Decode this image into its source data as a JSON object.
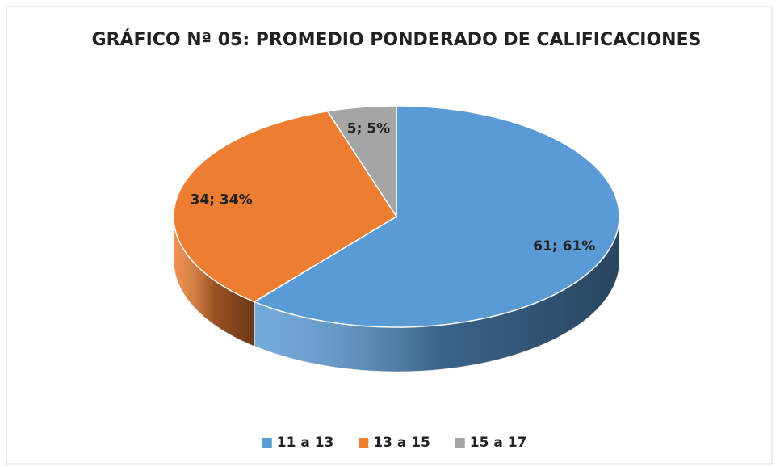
{
  "chart_data": {
    "type": "pie3d",
    "title": "GRÁFICO Nª 05: PROMEDIO PONDERADO DE CALIFICACIONES",
    "categories": [
      "11 a 13",
      "13 a 15",
      "15 a 17"
    ],
    "values": [
      61,
      34,
      5
    ],
    "value_labels": [
      "61; 61%",
      "34; 34%",
      "5; 5%"
    ],
    "colors": [
      "#5b9bd5",
      "#ed7d31",
      "#a5a5a5"
    ],
    "legend": "bottom"
  }
}
